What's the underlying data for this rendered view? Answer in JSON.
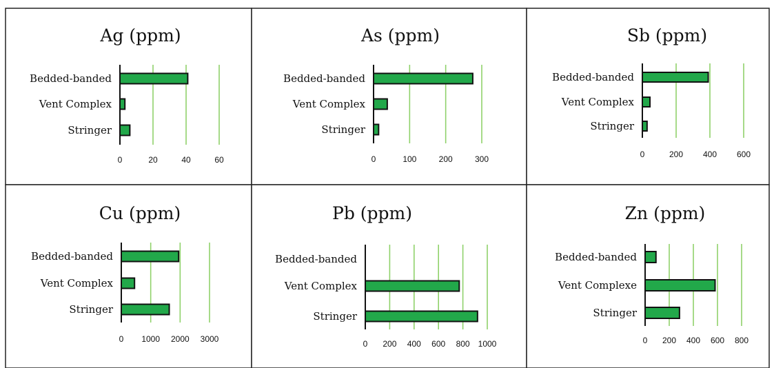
{
  "bar_color": "#22a84a",
  "grid_color": "#8fd16a",
  "chart_data": [
    {
      "type": "bar",
      "orientation": "horizontal",
      "title": "Ag (ppm)",
      "categories": [
        "Bedded-banded",
        "Vent Complex",
        "Stringer"
      ],
      "values": [
        41,
        3,
        6
      ],
      "ticks": [
        "0",
        "20",
        "40",
        "60"
      ],
      "xlim": [
        0,
        60
      ],
      "grid": true
    },
    {
      "type": "bar",
      "orientation": "horizontal",
      "title": "As (ppm)",
      "categories": [
        "Bedded-banded",
        "Vent Complex",
        "Stringer"
      ],
      "values": [
        275,
        38,
        14
      ],
      "ticks": [
        "0",
        "100",
        "200",
        "300"
      ],
      "xlim": [
        0,
        300
      ],
      "grid": true
    },
    {
      "type": "bar",
      "orientation": "horizontal",
      "title": "Sb (ppm)",
      "categories": [
        "Bedded-banded",
        "Vent Complex",
        "Stringer"
      ],
      "values": [
        390,
        45,
        28
      ],
      "ticks": [
        "0",
        "200",
        "400",
        "600"
      ],
      "xlim": [
        0,
        600
      ],
      "grid": true
    },
    {
      "type": "bar",
      "orientation": "horizontal",
      "title": "Cu (ppm)",
      "categories": [
        "Bedded-banded",
        "Vent Complex",
        "Stringer"
      ],
      "values": [
        1950,
        450,
        1630
      ],
      "ticks": [
        "0",
        "1000",
        "2000",
        "3000"
      ],
      "xlim": [
        0,
        3000
      ],
      "grid": true
    },
    {
      "type": "bar",
      "orientation": "horizontal",
      "title": "Pb (ppm)",
      "categories": [
        "Bedded-banded",
        "Vent Complex",
        "Stringer"
      ],
      "values": [
        0,
        770,
        920
      ],
      "ticks": [
        "0",
        "200",
        "400",
        "600",
        "800",
        "1000"
      ],
      "xlim": [
        0,
        1000
      ],
      "grid": true
    },
    {
      "type": "bar",
      "orientation": "horizontal",
      "title": "Zn (ppm)",
      "categories": [
        "Bedded-banded",
        "Vent Complexe",
        "Stringer"
      ],
      "values": [
        90,
        580,
        285
      ],
      "ticks": [
        "0",
        "200",
        "400",
        "600",
        "800"
      ],
      "xlim": [
        0,
        800
      ],
      "grid": true
    }
  ]
}
